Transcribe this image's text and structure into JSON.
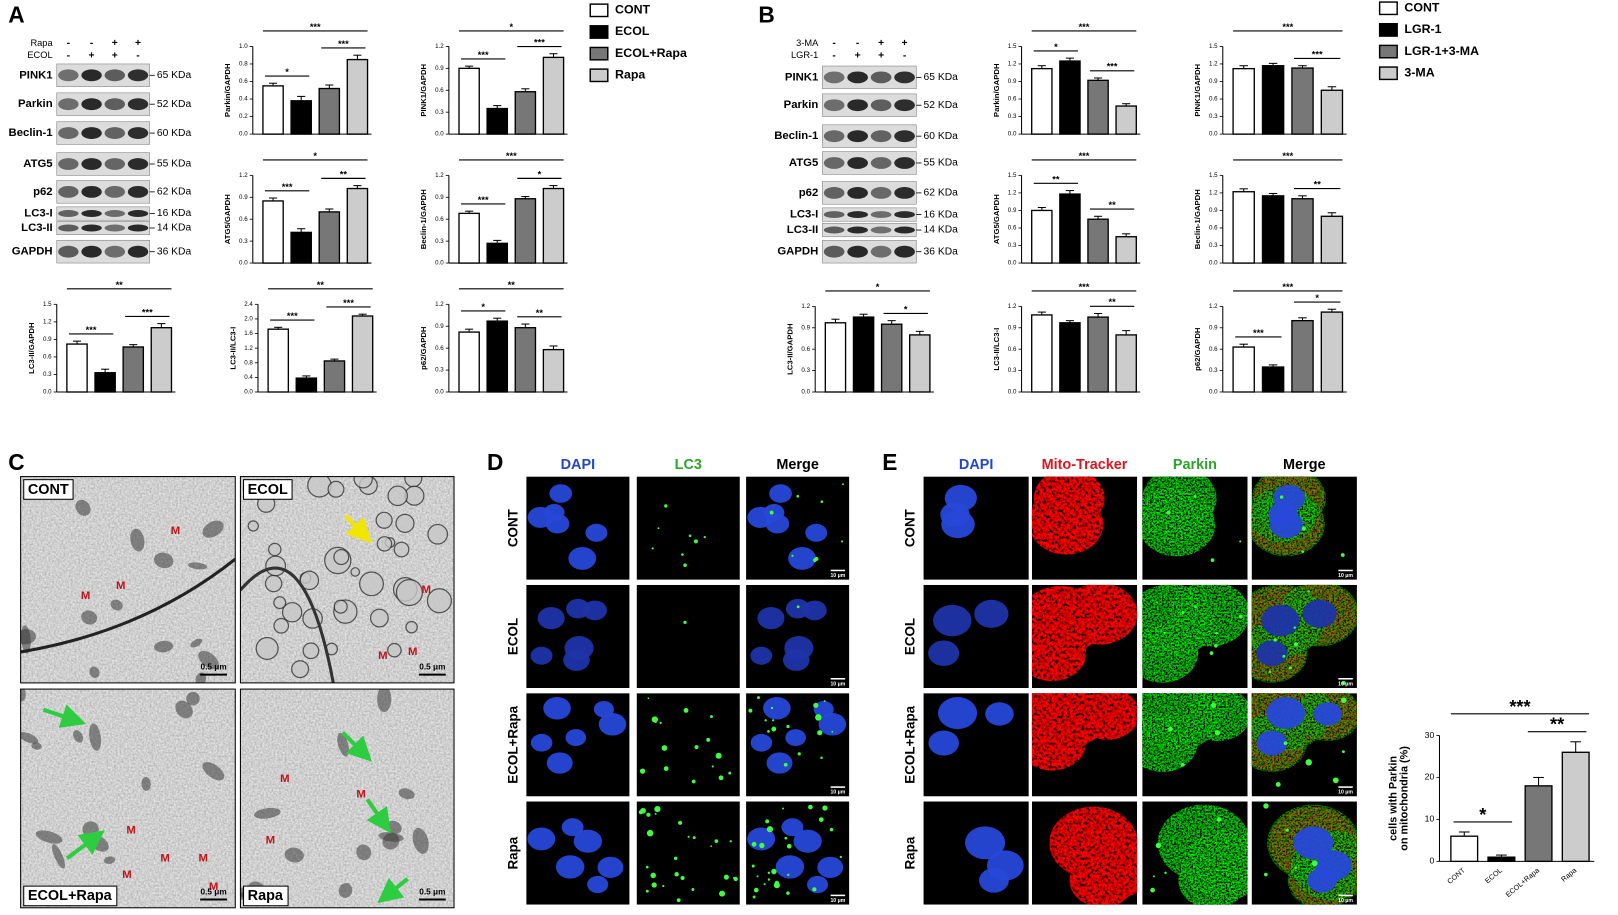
{
  "panels": {
    "A": {
      "label": "A",
      "treatments": [
        {
          "name": "Rapa",
          "signs": [
            "-",
            "-",
            "+",
            "+"
          ]
        },
        {
          "name": "ECOL",
          "signs": [
            "-",
            "+",
            "+",
            "-"
          ]
        }
      ],
      "blots": [
        {
          "protein": "PINK1",
          "size": "65 KDa"
        },
        {
          "protein": "Parkin",
          "size": "52 KDa"
        },
        {
          "protein": "Beclin-1",
          "size": "60 KDa"
        },
        {
          "protein": "ATG5",
          "size": "55 KDa"
        },
        {
          "protein": "p62",
          "size": "62 KDa"
        },
        {
          "protein": "LC3-I",
          "size": "16 KDa"
        },
        {
          "protein": "LC3-II",
          "size": "14 KDa"
        },
        {
          "protein": "GAPDH",
          "size": "36 KDa"
        }
      ],
      "legend": [
        {
          "name": "CONT",
          "color": "#ffffff"
        },
        {
          "name": "ECOL",
          "color": "#000000"
        },
        {
          "name": "ECOL+Rapa",
          "color": "#777777"
        },
        {
          "name": "Rapa",
          "color": "#cccccc"
        }
      ]
    },
    "B": {
      "label": "B",
      "treatments": [
        {
          "name": "3-MA",
          "signs": [
            "-",
            "-",
            "+",
            "+"
          ]
        },
        {
          "name": "LGR-1",
          "signs": [
            "-",
            "+",
            "+",
            "-"
          ]
        }
      ],
      "blots": [
        {
          "protein": "PINK1",
          "size": "65 KDa"
        },
        {
          "protein": "Parkin",
          "size": "52 KDa"
        },
        {
          "protein": "Beclin-1",
          "size": "60 KDa"
        },
        {
          "protein": "ATG5",
          "size": "55 KDa"
        },
        {
          "protein": "p62",
          "size": "62 KDa"
        },
        {
          "protein": "LC3-I",
          "size": "16 KDa"
        },
        {
          "protein": "LC3-II",
          "size": "14 KDa"
        },
        {
          "protein": "GAPDH",
          "size": "36 KDa"
        }
      ],
      "legend": [
        {
          "name": "CONT",
          "color": "#ffffff"
        },
        {
          "name": "LGR-1",
          "color": "#000000"
        },
        {
          "name": "LGR-1+3-MA",
          "color": "#777777"
        },
        {
          "name": "3-MA",
          "color": "#cccccc"
        }
      ]
    },
    "C": {
      "label": "C",
      "images": [
        {
          "label": "CONT",
          "scale": "0.5 μm",
          "markers": [
            "M",
            "M",
            "M"
          ]
        },
        {
          "label": "ECOL",
          "scale": "0.5 μm",
          "markers": [
            "M",
            "M",
            "M"
          ]
        },
        {
          "label": "ECOL+Rapa",
          "scale": "0.5 μm",
          "markers": [
            "M",
            "M",
            "M",
            "M",
            "M"
          ]
        },
        {
          "label": "Rapa",
          "scale": "0.5 μm",
          "markers": [
            "M",
            "M",
            "M"
          ]
        }
      ]
    },
    "D": {
      "label": "D",
      "columns": [
        "DAPI",
        "LC3",
        "Merge"
      ],
      "rows": [
        "CONT",
        "ECOL",
        "ECOL+Rapa",
        "Rapa"
      ],
      "scale": "10 μm"
    },
    "E": {
      "label": "E",
      "columns": [
        "DAPI",
        "Mito-Tracker",
        "Parkin",
        "Merge"
      ],
      "rows": [
        "CONT",
        "ECOL",
        "ECOL+Rapa",
        "Rapa"
      ],
      "scale": "10 μm"
    }
  },
  "chart_data": [
    {
      "type": "bar",
      "ylabel": "Parkin/GAPDH",
      "values": [
        0.55,
        0.38,
        0.52,
        0.85
      ],
      "errors": [
        0.03,
        0.05,
        0.04,
        0.05
      ],
      "colors": [
        "#ffffff",
        "#000000",
        "#777777",
        "#cccccc"
      ],
      "ylim": [
        0,
        1
      ],
      "yticks": [
        {
          "value": 0,
          "label": "0.0"
        },
        0.2,
        0.4,
        0.6,
        0.8,
        {
          "value": 1,
          "label": "1.0"
        }
      ],
      "significance": [
        {
          "label": "*",
          "bars": [
            0,
            1
          ]
        },
        {
          "label": "***",
          "bars": [
            2,
            3
          ]
        },
        {
          "label": "***",
          "bars": [
            0,
            3
          ]
        }
      ]
    },
    {
      "type": "bar",
      "ylabel": "PINK1/GAPDH",
      "values": [
        0.9,
        0.35,
        0.58,
        1.05
      ],
      "errors": [
        0.03,
        0.04,
        0.04,
        0.05
      ],
      "colors": [
        "#ffffff",
        "#000000",
        "#777777",
        "#cccccc"
      ],
      "ylim": [
        0,
        1.2
      ],
      "yticks": [
        {
          "value": 0,
          "label": "0.0"
        },
        0.3,
        0.6,
        0.9,
        1.2
      ],
      "significance": [
        {
          "label": "***",
          "bars": [
            0,
            1
          ]
        },
        {
          "label": "***",
          "bars": [
            2,
            3
          ]
        },
        {
          "label": "*",
          "bars": [
            0,
            3
          ]
        }
      ]
    },
    {
      "type": "bar",
      "ylabel": "ATG5/GAPDH",
      "values": [
        0.85,
        0.42,
        0.7,
        1.02
      ],
      "errors": [
        0.04,
        0.05,
        0.04,
        0.04
      ],
      "colors": [
        "#ffffff",
        "#000000",
        "#777777",
        "#cccccc"
      ],
      "ylim": [
        0,
        1.2
      ],
      "yticks": [
        {
          "value": 0,
          "label": "0.0"
        },
        0.3,
        0.6,
        0.9,
        1.2
      ],
      "significance": [
        {
          "label": "***",
          "bars": [
            0,
            1
          ]
        },
        {
          "label": "**",
          "bars": [
            2,
            3
          ]
        },
        {
          "label": "*",
          "bars": [
            0,
            3
          ]
        }
      ]
    },
    {
      "type": "bar",
      "ylabel": "Beclin-1/GAPDH",
      "values": [
        0.68,
        0.27,
        0.88,
        1.02
      ],
      "errors": [
        0.03,
        0.04,
        0.03,
        0.04
      ],
      "colors": [
        "#ffffff",
        "#000000",
        "#777777",
        "#cccccc"
      ],
      "ylim": [
        0,
        1.2
      ],
      "yticks": [
        {
          "value": 0,
          "label": "0.0"
        },
        0.3,
        0.6,
        0.9,
        1.2
      ],
      "significance": [
        {
          "label": "***",
          "bars": [
            0,
            1
          ]
        },
        {
          "label": "*",
          "bars": [
            2,
            3
          ]
        },
        {
          "label": "***",
          "bars": [
            0,
            3
          ]
        }
      ]
    },
    {
      "type": "bar",
      "ylabel": "LC3-II/GAPDH",
      "values": [
        0.82,
        0.33,
        0.77,
        1.1
      ],
      "errors": [
        0.05,
        0.06,
        0.04,
        0.07
      ],
      "colors": [
        "#ffffff",
        "#000000",
        "#777777",
        "#cccccc"
      ],
      "ylim": [
        0,
        1.5
      ],
      "yticks": [
        {
          "value": 0,
          "label": "0.0"
        },
        0.3,
        0.6,
        0.9,
        1.2,
        1.5
      ],
      "significance": [
        {
          "label": "***",
          "bars": [
            0,
            1
          ]
        },
        {
          "label": "***",
          "bars": [
            2,
            3
          ]
        },
        {
          "label": "**",
          "bars": [
            0,
            3
          ]
        }
      ]
    },
    {
      "type": "bar",
      "ylabel": "LC3-II/LC3-I",
      "values": [
        1.72,
        0.38,
        0.85,
        2.08
      ],
      "errors": [
        0.05,
        0.06,
        0.05,
        0.05
      ],
      "colors": [
        "#ffffff",
        "#000000",
        "#777777",
        "#cccccc"
      ],
      "ylim": [
        0,
        2.4
      ],
      "yticks": [
        {
          "value": 0,
          "label": "0.0"
        },
        0.4,
        0.8,
        1.2,
        1.6,
        {
          "value": 2,
          "label": "2.0"
        },
        2.4
      ],
      "significance": [
        {
          "label": "***",
          "bars": [
            0,
            1
          ]
        },
        {
          "label": "***",
          "bars": [
            2,
            3
          ]
        },
        {
          "label": "**",
          "bars": [
            0,
            3
          ]
        }
      ]
    },
    {
      "type": "bar",
      "ylabel": "p62/GAPDH",
      "values": [
        0.82,
        0.97,
        0.88,
        0.58
      ],
      "errors": [
        0.04,
        0.04,
        0.05,
        0.05
      ],
      "colors": [
        "#ffffff",
        "#000000",
        "#777777",
        "#cccccc"
      ],
      "ylim": [
        0,
        1.2
      ],
      "yticks": [
        {
          "value": 0,
          "label": "0.0"
        },
        0.3,
        0.6,
        0.9,
        1.2
      ],
      "significance": [
        {
          "label": "*",
          "bars": [
            0,
            1
          ]
        },
        {
          "label": "**",
          "bars": [
            2,
            3
          ]
        },
        {
          "label": "**",
          "bars": [
            0,
            3
          ]
        }
      ]
    },
    {
      "type": "bar",
      "ylabel": "Parkin/GAPDH",
      "values": [
        1.12,
        1.25,
        0.92,
        0.48
      ],
      "errors": [
        0.05,
        0.05,
        0.04,
        0.04
      ],
      "colors": [
        "#ffffff",
        "#000000",
        "#777777",
        "#cccccc"
      ],
      "ylim": [
        0,
        1.5
      ],
      "yticks": [
        {
          "value": 0,
          "label": "0.0"
        },
        0.3,
        0.6,
        0.9,
        1.2,
        1.5
      ],
      "significance": [
        {
          "label": "*",
          "bars": [
            0,
            1
          ]
        },
        {
          "label": "***",
          "bars": [
            2,
            3
          ]
        },
        {
          "label": "***",
          "bars": [
            0,
            3
          ]
        }
      ]
    },
    {
      "type": "bar",
      "ylabel": "PINK1/GAPDH",
      "values": [
        1.12,
        1.17,
        1.13,
        0.75
      ],
      "errors": [
        0.05,
        0.04,
        0.04,
        0.06
      ],
      "colors": [
        "#ffffff",
        "#000000",
        "#777777",
        "#cccccc"
      ],
      "ylim": [
        0,
        1.5
      ],
      "yticks": [
        {
          "value": 0,
          "label": "0.0"
        },
        0.3,
        0.6,
        0.9,
        1.2,
        1.5
      ],
      "significance": [
        {
          "label": "***",
          "bars": [
            2,
            3
          ]
        },
        {
          "label": "***",
          "bars": [
            0,
            3
          ]
        }
      ]
    },
    {
      "type": "bar",
      "ylabel": "ATG5/GAPDH",
      "values": [
        0.9,
        1.18,
        0.75,
        0.45
      ],
      "errors": [
        0.05,
        0.06,
        0.05,
        0.05
      ],
      "colors": [
        "#ffffff",
        "#000000",
        "#777777",
        "#cccccc"
      ],
      "ylim": [
        0,
        1.5
      ],
      "yticks": [
        {
          "value": 0,
          "label": "0.0"
        },
        0.3,
        0.6,
        0.9,
        1.2,
        1.5
      ],
      "significance": [
        {
          "label": "**",
          "bars": [
            0,
            1
          ]
        },
        {
          "label": "**",
          "bars": [
            2,
            3
          ]
        },
        {
          "label": "***",
          "bars": [
            0,
            3
          ]
        }
      ]
    },
    {
      "type": "bar",
      "ylabel": "Beclin-1/GAPDH",
      "values": [
        1.22,
        1.15,
        1.1,
        0.8
      ],
      "errors": [
        0.05,
        0.04,
        0.05,
        0.06
      ],
      "colors": [
        "#ffffff",
        "#000000",
        "#777777",
        "#cccccc"
      ],
      "ylim": [
        0,
        1.5
      ],
      "yticks": [
        {
          "value": 0,
          "label": "0.0"
        },
        0.3,
        0.6,
        0.9,
        1.2,
        1.5
      ],
      "significance": [
        {
          "label": "**",
          "bars": [
            2,
            3
          ]
        },
        {
          "label": "***",
          "bars": [
            0,
            3
          ]
        }
      ]
    },
    {
      "type": "bar",
      "ylabel": "LC3-II/GAPDH",
      "values": [
        0.97,
        1.05,
        0.95,
        0.8
      ],
      "errors": [
        0.05,
        0.04,
        0.05,
        0.05
      ],
      "colors": [
        "#ffffff",
        "#000000",
        "#777777",
        "#cccccc"
      ],
      "ylim": [
        0,
        1.2
      ],
      "yticks": [
        {
          "value": 0,
          "label": "0.0"
        },
        0.3,
        0.6,
        0.9,
        1.2
      ],
      "significance": [
        {
          "label": "*",
          "bars": [
            2,
            3
          ]
        },
        {
          "label": "*",
          "bars": [
            0,
            3
          ]
        }
      ]
    },
    {
      "type": "bar",
      "ylabel": "LC3-II/LC3-I",
      "values": [
        1.08,
        0.97,
        1.05,
        0.8
      ],
      "errors": [
        0.04,
        0.03,
        0.05,
        0.06
      ],
      "colors": [
        "#ffffff",
        "#000000",
        "#777777",
        "#cccccc"
      ],
      "ylim": [
        0,
        1.2
      ],
      "yticks": [
        {
          "value": 0,
          "label": "0.0"
        },
        0.3,
        0.6,
        0.9,
        1.2
      ],
      "significance": [
        {
          "label": "**",
          "bars": [
            2,
            3
          ]
        },
        {
          "label": "***",
          "bars": [
            0,
            3
          ]
        }
      ]
    },
    {
      "type": "bar",
      "ylabel": "p62/GAPDH",
      "values": [
        0.63,
        0.35,
        1.0,
        1.12
      ],
      "errors": [
        0.04,
        0.03,
        0.04,
        0.04
      ],
      "colors": [
        "#ffffff",
        "#000000",
        "#777777",
        "#cccccc"
      ],
      "ylim": [
        0,
        1.2
      ],
      "yticks": [
        {
          "value": 0,
          "label": "0.0"
        },
        0.3,
        0.6,
        0.9,
        1.2
      ],
      "significance": [
        {
          "label": "***",
          "bars": [
            0,
            1
          ]
        },
        {
          "label": "*",
          "bars": [
            2,
            3
          ]
        },
        {
          "label": "***",
          "bars": [
            0,
            3
          ]
        }
      ]
    },
    {
      "type": "bar",
      "ylabel": [
        "cells with Parkin",
        "on mitochondria (%)"
      ],
      "categories": [
        "CONT",
        "ECOL",
        "ECOL+Rapa",
        "Rapa"
      ],
      "values": [
        6,
        1,
        18,
        26
      ],
      "errors": [
        1,
        0.5,
        2,
        2.5
      ],
      "colors": [
        "#ffffff",
        "#000000",
        "#777777",
        "#cccccc"
      ],
      "ylim": [
        0,
        30
      ],
      "yticks": [
        0,
        10,
        20,
        30
      ],
      "significance": [
        {
          "label": "*",
          "bars": [
            0,
            1
          ]
        },
        {
          "label": "**",
          "bars": [
            2,
            3
          ]
        },
        {
          "label": "***",
          "bars": [
            0,
            3
          ]
        }
      ]
    }
  ]
}
